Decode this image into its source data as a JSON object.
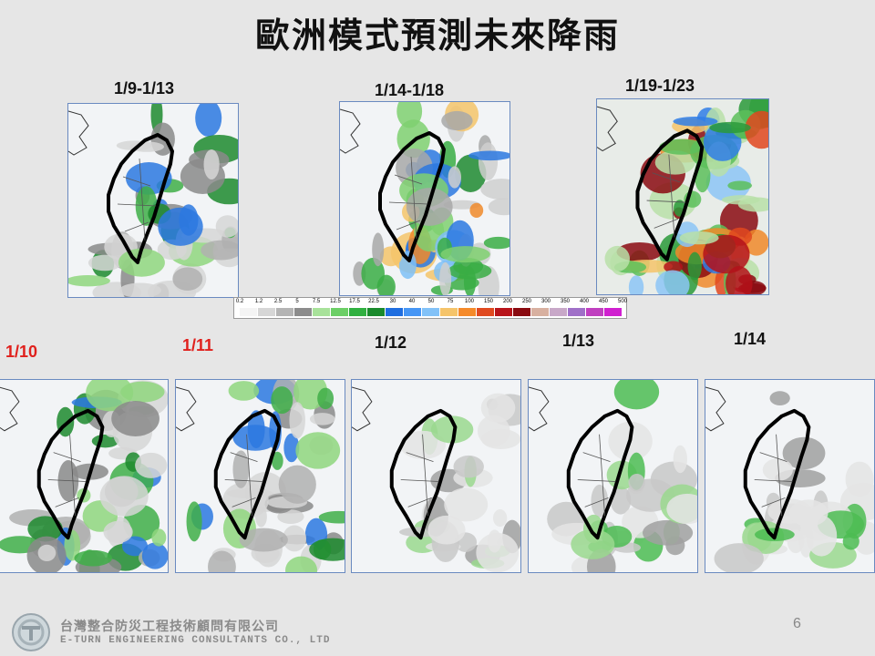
{
  "title": "歐洲模式預測未來降雨",
  "maps_top": [
    {
      "label": "1/9-1/13",
      "intensity": "moderate"
    },
    {
      "label": "1/14-1/18",
      "intensity": "high"
    },
    {
      "label": "1/19-1/23",
      "intensity": "extreme"
    }
  ],
  "maps_bottom": [
    {
      "label": "1/10",
      "highlight": true,
      "intensity": "moderate"
    },
    {
      "label": "1/11",
      "highlight": true,
      "intensity": "moderate"
    },
    {
      "label": "1/12",
      "highlight": false,
      "intensity": "light"
    },
    {
      "label": "1/13",
      "highlight": false,
      "intensity": "light"
    },
    {
      "label": "1/14",
      "highlight": false,
      "intensity": "light"
    }
  ],
  "colorbar": {
    "ticks": [
      "0.2",
      "1.2",
      "2.5",
      "5",
      "7.5",
      "12.5",
      "17.5",
      "22.5",
      "30",
      "40",
      "50",
      "75",
      "100",
      "150",
      "200",
      "250",
      "300",
      "350",
      "400",
      "450",
      "500"
    ],
    "colors": [
      "#f4f4f4",
      "#d6d6d6",
      "#b4b4b4",
      "#8c8c8c",
      "#a8e29a",
      "#6ccf66",
      "#30b040",
      "#1a8a2c",
      "#1f6ee0",
      "#4696f5",
      "#82c2f8",
      "#f5c46a",
      "#f58a2a",
      "#e04a20",
      "#b8141a",
      "#8a0a10",
      "#d8b0a0",
      "#c8a8c8",
      "#a070c8",
      "#c040c0",
      "#d020d0"
    ]
  },
  "page_number": "6",
  "company": {
    "name_cn": "台灣整合防災工程技術顧問有限公司",
    "name_en": "E-TURN ENGINEERING CONSULTANTS CO., LTD",
    "logo_icon": "company-logo-icon"
  }
}
